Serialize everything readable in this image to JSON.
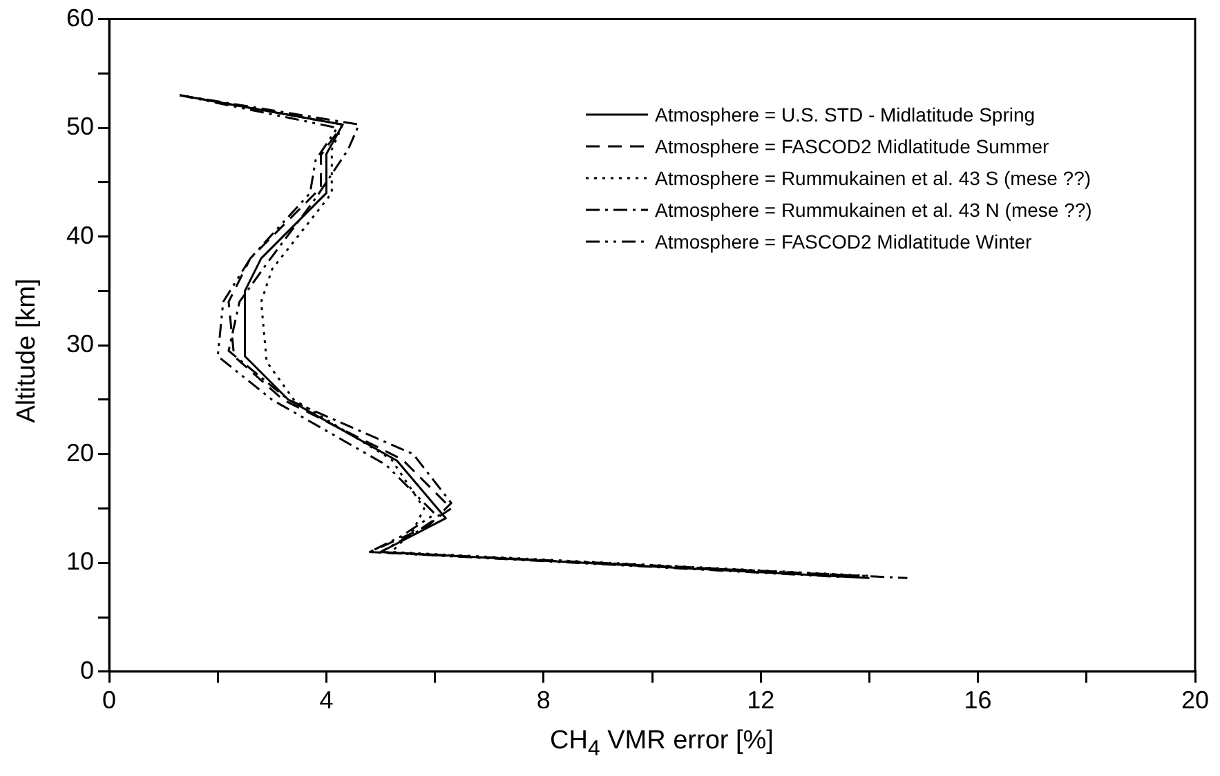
{
  "chart_data": {
    "type": "line",
    "xlabel": "CH$_{4}$ VMR error [%]",
    "ylabel": "Altitude [km]",
    "xlim": [
      0,
      20
    ],
    "ylim": [
      0,
      60
    ],
    "xticks": [
      0,
      {
        "value": 2,
        "label": null
      },
      4,
      {
        "value": 6,
        "label": null
      },
      8,
      {
        "value": 10,
        "label": null
      },
      12,
      {
        "value": 14,
        "label": null
      },
      16,
      {
        "value": 18,
        "label": null
      },
      20
    ],
    "yticks": [
      0,
      {
        "value": 5,
        "label": null
      },
      10,
      {
        "value": 15,
        "label": null
      },
      20,
      {
        "value": 25,
        "label": null
      },
      30,
      {
        "value": 35,
        "label": null
      },
      40,
      {
        "value": 45,
        "label": null
      },
      50,
      {
        "value": 55,
        "label": null
      },
      60
    ],
    "grid": false,
    "legend": "top right",
    "marker": "none",
    "series": [
      {
        "name": "Atmosphere = U.S. STD - Midlatitude Spring",
        "color": "#000000",
        "line_style": "solid",
        "x": [
          1.3,
          4.3,
          4.0,
          4.0,
          2.8,
          2.5,
          2.5,
          3.3,
          5.3,
          6.2,
          5.0,
          14.0
        ],
        "values": [
          53,
          50.3,
          47.6,
          44,
          38,
          35,
          29,
          25,
          19.4,
          14.1,
          11,
          8.6
        ]
      },
      {
        "name": "Atmosphere = FASCOD2 Midlatitude Summer",
        "color": "#000000",
        "line_style": "dashed",
        "x": [
          1.3,
          4.3,
          3.9,
          3.9,
          2.6,
          2.2,
          2.3,
          3.2,
          5.4,
          6.3,
          5.7,
          4.8,
          13.8
        ],
        "values": [
          53,
          50.3,
          47.5,
          44.5,
          38,
          34,
          29,
          25,
          19.5,
          15,
          13,
          11,
          8.8
        ]
      },
      {
        "name": "Atmosphere = Rummukainen et al. 43 S (mese ??)",
        "color": "#000000",
        "line_style": "dotted",
        "x": [
          1.3,
          4.3,
          4.1,
          4.1,
          3.0,
          2.8,
          2.9,
          3.4,
          5.2,
          5.8,
          5.6,
          5.2,
          14.0
        ],
        "values": [
          53,
          50.3,
          48,
          44,
          37,
          34,
          28.5,
          25,
          19.5,
          15,
          13,
          11,
          8.8
        ]
      },
      {
        "name": "Atmosphere = Rummukainen et al. 43 N (mese ??)",
        "color": "#000000",
        "line_style": "dashdot",
        "x": [
          1.3,
          4.6,
          4.4,
          3.8,
          2.9,
          2.4,
          2.2,
          3.3,
          5.6,
          6.3,
          5.9,
          5.0,
          14.7
        ],
        "values": [
          53,
          50.3,
          48,
          43.5,
          37.5,
          34,
          29.5,
          25,
          20,
          15.5,
          13.5,
          11,
          8.6
        ]
      },
      {
        "name": "Atmosphere = FASCOD2 Midlatitude Winter",
        "color": "#000000",
        "line_style": "dashdotdot",
        "x": [
          1.3,
          4.2,
          3.8,
          3.7,
          2.6,
          2.1,
          2.0,
          3.0,
          5.1,
          6.0,
          5.4,
          4.8,
          13.5
        ],
        "values": [
          53,
          50,
          47,
          44,
          38,
          34,
          29,
          25,
          19,
          14.5,
          12.5,
          11,
          8.7
        ]
      }
    ]
  }
}
